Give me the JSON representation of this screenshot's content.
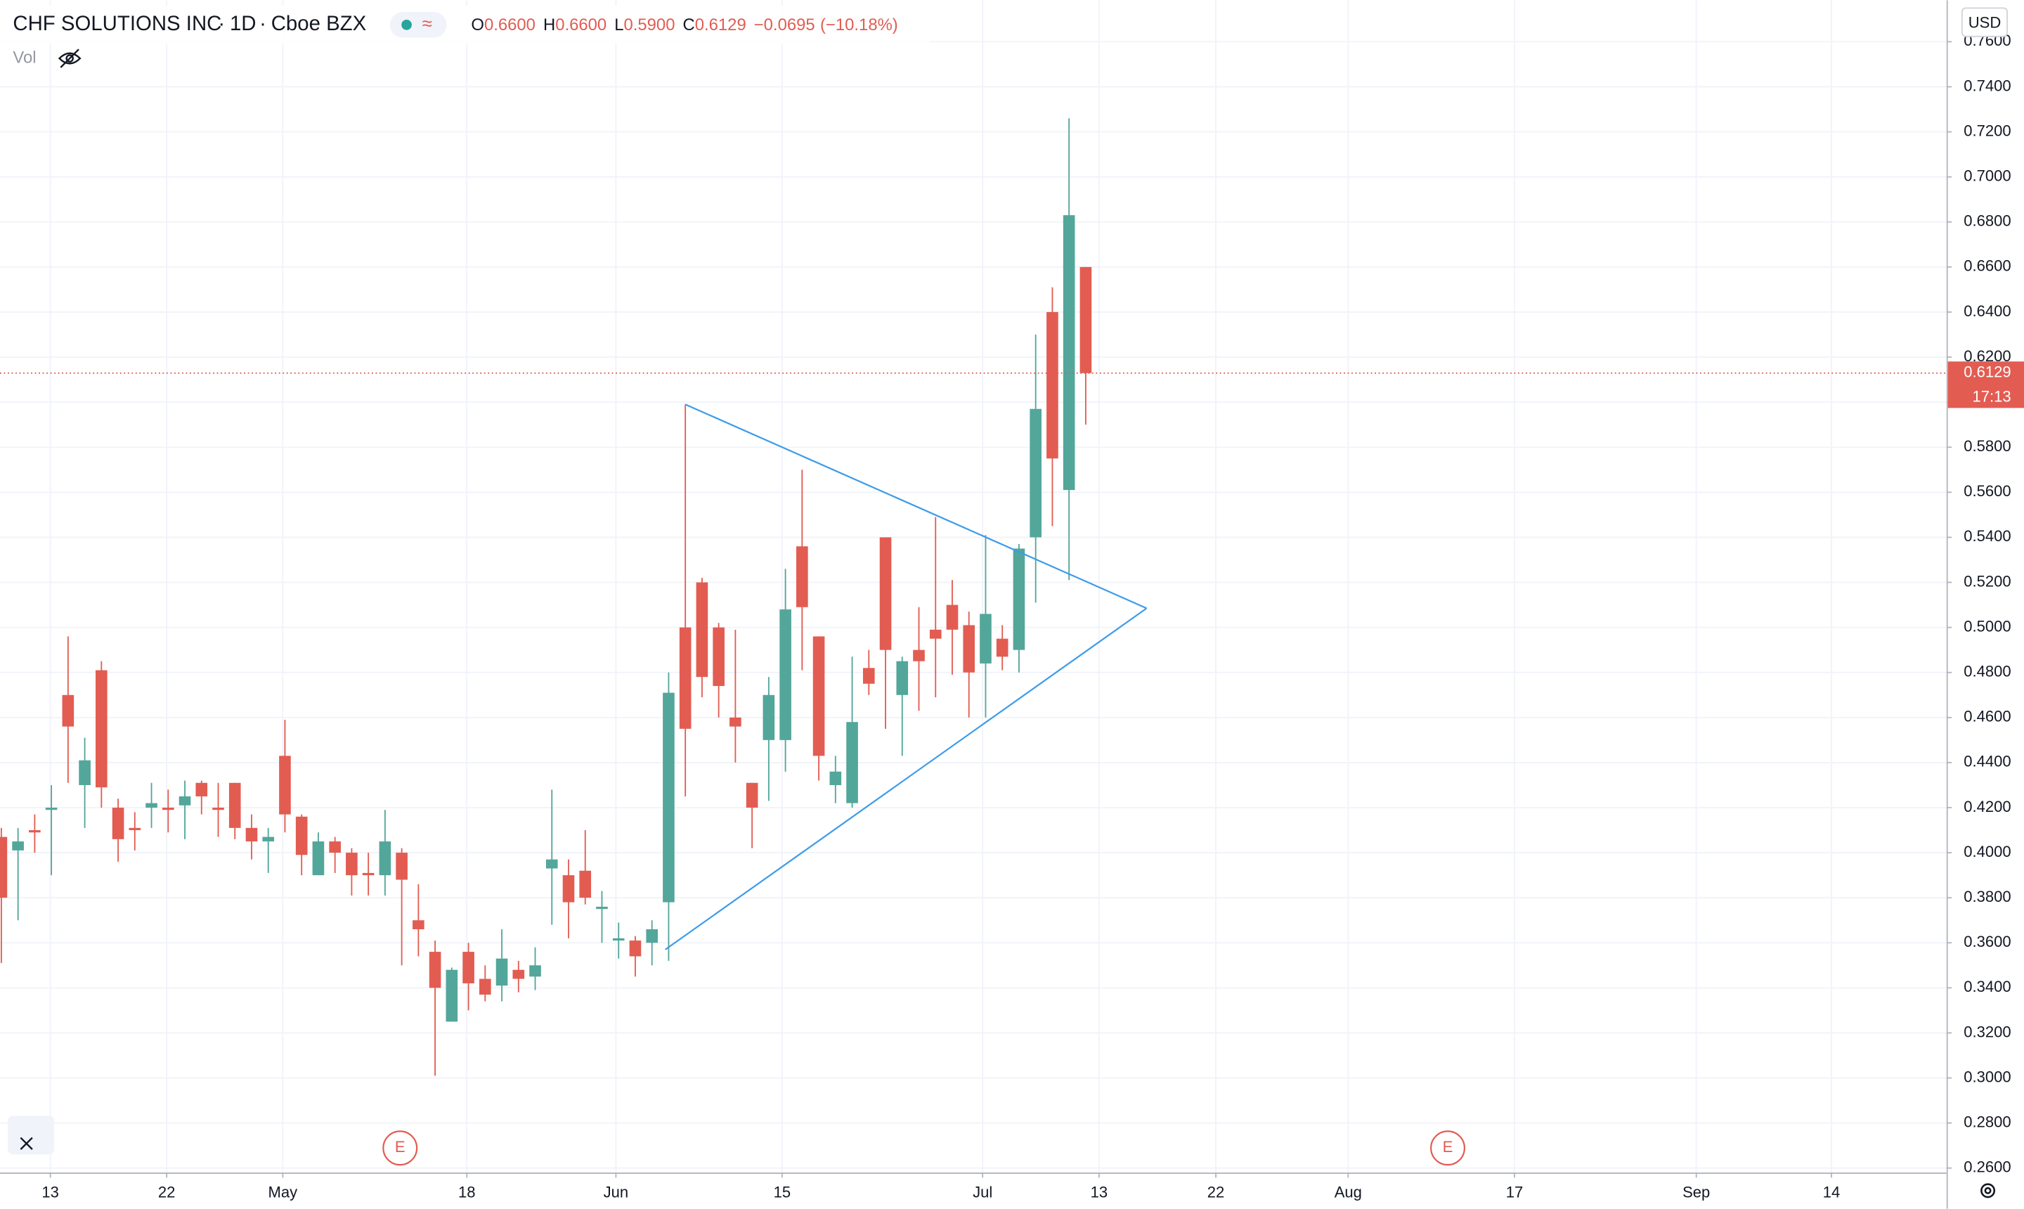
{
  "header": {
    "symbol": "CHF SOLUTIONS INC",
    "interval": "1D",
    "exchange": "Cboe BZX",
    "open_label": "O",
    "open": "0.6600",
    "high_label": "H",
    "high": "0.6600",
    "low_label": "L",
    "low": "0.5900",
    "close_label": "C",
    "close": "0.6129",
    "change": "−0.0695",
    "change_pct": "(−10.18%)",
    "volume_label": "Vol",
    "currency": "USD",
    "countdown": "17:13"
  },
  "chart_data": {
    "type": "candlestick",
    "x": [
      0,
      1,
      2,
      3,
      4,
      5,
      6,
      7,
      8,
      9,
      10,
      11,
      12,
      13,
      14,
      15,
      16,
      17,
      18,
      19,
      20,
      21,
      22,
      23,
      24,
      25,
      26,
      27,
      28,
      29,
      30,
      31,
      32,
      33,
      34,
      35,
      36,
      37,
      38,
      39,
      40,
      41,
      42,
      43,
      44,
      45,
      46,
      47,
      48,
      49,
      50,
      51,
      52,
      53,
      54,
      55,
      56,
      57,
      58,
      59,
      60,
      61,
      62,
      63,
      64,
      65
    ],
    "open": [
      0.407,
      0.401,
      0.41,
      0.419,
      0.47,
      0.43,
      0.481,
      0.42,
      0.411,
      0.42,
      0.42,
      0.421,
      0.431,
      0.42,
      0.431,
      0.411,
      0.405,
      0.443,
      0.416,
      0.39,
      0.405,
      0.4,
      0.391,
      0.39,
      0.4,
      0.37,
      0.356,
      0.325,
      0.356,
      0.344,
      0.341,
      0.348,
      0.345,
      0.393,
      0.39,
      0.392,
      0.375,
      0.361,
      0.361,
      0.36,
      0.378,
      0.5,
      0.52,
      0.5,
      0.46,
      0.431,
      0.45,
      0.45,
      0.536,
      0.496,
      0.43,
      0.422,
      0.482,
      0.54,
      0.47,
      0.49,
      0.499,
      0.51,
      0.501,
      0.484,
      0.495,
      0.49,
      0.54,
      0.64,
      0.561,
      0.66
    ],
    "high": [
      0.411,
      0.411,
      0.417,
      0.43,
      0.496,
      0.451,
      0.485,
      0.424,
      0.418,
      0.431,
      0.428,
      0.432,
      0.432,
      0.431,
      0.431,
      0.417,
      0.411,
      0.459,
      0.417,
      0.409,
      0.407,
      0.402,
      0.4,
      0.419,
      0.402,
      0.386,
      0.361,
      0.349,
      0.36,
      0.35,
      0.366,
      0.352,
      0.358,
      0.428,
      0.397,
      0.41,
      0.383,
      0.369,
      0.363,
      0.37,
      0.48,
      0.599,
      0.522,
      0.502,
      0.499,
      0.431,
      0.478,
      0.526,
      0.57,
      0.496,
      0.443,
      0.487,
      0.49,
      0.54,
      0.487,
      0.509,
      0.549,
      0.521,
      0.507,
      0.541,
      0.501,
      0.537,
      0.63,
      0.651,
      0.726,
      0.66
    ],
    "low": [
      0.351,
      0.37,
      0.4,
      0.39,
      0.431,
      0.411,
      0.42,
      0.396,
      0.401,
      0.411,
      0.409,
      0.406,
      0.417,
      0.407,
      0.406,
      0.397,
      0.391,
      0.409,
      0.39,
      0.39,
      0.391,
      0.381,
      0.381,
      0.381,
      0.35,
      0.354,
      0.301,
      0.325,
      0.33,
      0.334,
      0.334,
      0.338,
      0.339,
      0.368,
      0.362,
      0.377,
      0.36,
      0.353,
      0.345,
      0.35,
      0.352,
      0.425,
      0.469,
      0.46,
      0.44,
      0.402,
      0.423,
      0.436,
      0.481,
      0.432,
      0.422,
      0.42,
      0.47,
      0.455,
      0.443,
      0.463,
      0.469,
      0.479,
      0.46,
      0.46,
      0.481,
      0.48,
      0.511,
      0.545,
      0.521,
      0.59
    ],
    "close": [
      0.38,
      0.405,
      0.409,
      0.42,
      0.456,
      0.441,
      0.429,
      0.406,
      0.41,
      0.422,
      0.419,
      0.425,
      0.425,
      0.419,
      0.411,
      0.405,
      0.407,
      0.417,
      0.399,
      0.405,
      0.4,
      0.39,
      0.39,
      0.405,
      0.388,
      0.366,
      0.34,
      0.348,
      0.342,
      0.337,
      0.353,
      0.344,
      0.35,
      0.397,
      0.378,
      0.38,
      0.376,
      0.362,
      0.354,
      0.366,
      0.471,
      0.455,
      0.478,
      0.474,
      0.456,
      0.42,
      0.47,
      0.508,
      0.509,
      0.443,
      0.436,
      0.458,
      0.475,
      0.49,
      0.485,
      0.485,
      0.495,
      0.499,
      0.48,
      0.506,
      0.487,
      0.535,
      0.597,
      0.575,
      0.683,
      0.6129
    ],
    "up_color": "#53a69a",
    "down_color": "#e25c52",
    "xlim": [
      -0.08,
      116.6
    ],
    "xticks": [
      {
        "value": 2.94,
        "label": "13"
      },
      {
        "value": 9.91,
        "label": "22"
      },
      {
        "value": 16.87,
        "label": "May"
      },
      {
        "value": 27.9,
        "label": "18"
      },
      {
        "value": 36.84,
        "label": "Jun"
      },
      {
        "value": 46.8,
        "label": "15"
      },
      {
        "value": 58.82,
        "label": "Jul"
      },
      {
        "value": 65.8,
        "label": "13"
      },
      {
        "value": 72.8,
        "label": "22"
      },
      {
        "value": 80.73,
        "label": "Aug"
      },
      {
        "value": 90.7,
        "label": "17"
      },
      {
        "value": 101.6,
        "label": "Sep"
      },
      {
        "value": 109.7,
        "label": "14"
      }
    ],
    "ylim": [
      0.258,
      0.7784
    ],
    "yticks": [
      {
        "value": 0.26,
        "label": "0.2600"
      },
      {
        "value": 0.28,
        "label": "0.2800"
      },
      {
        "value": 0.3,
        "label": "0.3000"
      },
      {
        "value": 0.32,
        "label": "0.3200"
      },
      {
        "value": 0.34,
        "label": "0.3400"
      },
      {
        "value": 0.36,
        "label": "0.3600"
      },
      {
        "value": 0.38,
        "label": "0.3800"
      },
      {
        "value": 0.4,
        "label": "0.4000"
      },
      {
        "value": 0.42,
        "label": "0.4200"
      },
      {
        "value": 0.44,
        "label": "0.4400"
      },
      {
        "value": 0.46,
        "label": "0.4600"
      },
      {
        "value": 0.48,
        "label": "0.4800"
      },
      {
        "value": 0.5,
        "label": "0.5000"
      },
      {
        "value": 0.52,
        "label": "0.5200"
      },
      {
        "value": 0.54,
        "label": "0.5400"
      },
      {
        "value": 0.56,
        "label": "0.5600"
      },
      {
        "value": 0.58,
        "label": "0.5800"
      },
      {
        "value": 0.6,
        "label": "0.6000"
      },
      {
        "value": 0.62,
        "label": "0.6200"
      },
      {
        "value": 0.64,
        "label": "0.6400"
      },
      {
        "value": 0.66,
        "label": "0.6600"
      },
      {
        "value": 0.68,
        "label": "0.6800"
      },
      {
        "value": 0.7,
        "label": "0.7000"
      },
      {
        "value": 0.72,
        "label": "0.7200"
      },
      {
        "value": 0.74,
        "label": "0.7400"
      },
      {
        "value": 0.76,
        "label": "0.7600"
      }
    ],
    "grid": true,
    "trendlines": [
      {
        "x": [
          41,
          68.65
        ],
        "y": [
          0.599,
          0.5085
        ]
      },
      {
        "x": [
          39.8,
          68.65
        ],
        "y": [
          0.357,
          0.5085
        ]
      }
    ],
    "trendline_color": "#3d9be9",
    "events": [
      {
        "x": 23.9,
        "label": "E"
      },
      {
        "x": 86.7,
        "label": "E"
      }
    ]
  }
}
